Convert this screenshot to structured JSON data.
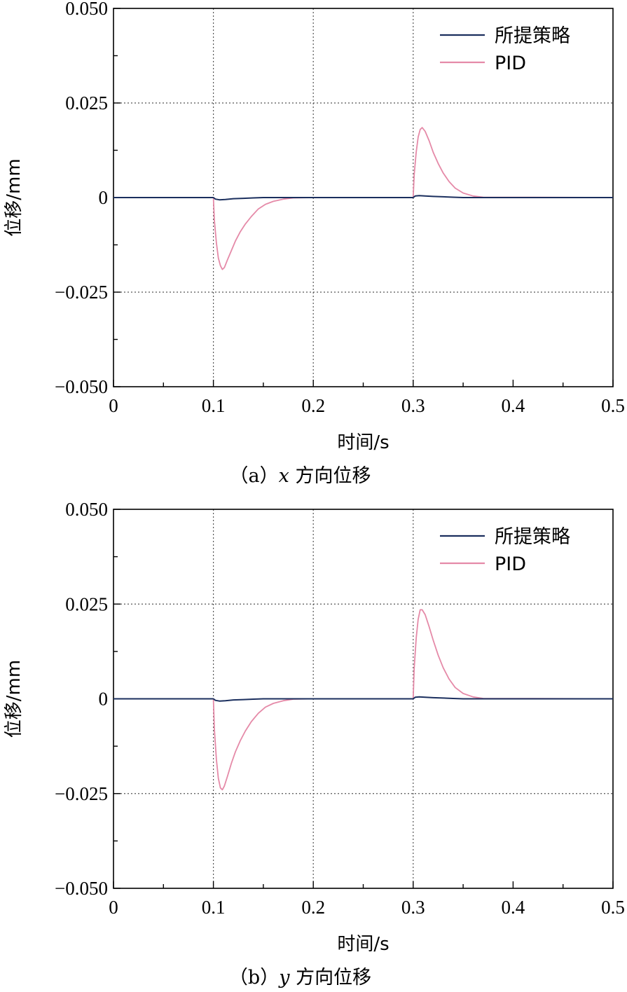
{
  "colors": {
    "proposed": "#1b2f5e",
    "pid": "#e58aa8",
    "grid": "#555555",
    "axis": "#000000"
  },
  "chart_data": [
    {
      "type": "line",
      "caption_prefix": "（a）",
      "caption_var": "x",
      "caption_suffix": " 方向位移",
      "xlabel": "时间/s",
      "ylabel": "位移/mm",
      "xlim": [
        0,
        0.5
      ],
      "ylim": [
        -0.05,
        0.05
      ],
      "x_ticks": [
        "0",
        "0.1",
        "0.2",
        "0.3",
        "0.4",
        "0.5"
      ],
      "y_ticks": [
        "0.050",
        "0.025",
        "0",
        "−0.025",
        "−0.050"
      ],
      "y_tick_values": [
        0.05,
        0.025,
        0,
        -0.025,
        -0.05
      ],
      "grid": "dotted at 0.1, 0.2, 0.3 and ±0.025",
      "legend_position": "top-right",
      "series": [
        {
          "name": "所提策略",
          "color_key": "proposed",
          "x": [
            0,
            0.1,
            0.102,
            0.106,
            0.112,
            0.12,
            0.13,
            0.14,
            0.15,
            0.3,
            0.302,
            0.306,
            0.312,
            0.32,
            0.33,
            0.34,
            0.35,
            0.5
          ],
          "y": [
            0,
            0,
            -0.0004,
            -0.0006,
            -0.0005,
            -0.0003,
            -0.0002,
            -0.0001,
            0,
            0,
            0.0004,
            0.0005,
            0.0004,
            0.0003,
            0.0002,
            0.0001,
            0,
            0
          ]
        },
        {
          "name": "PID",
          "color_key": "pid",
          "x": [
            0,
            0.1,
            0.101,
            0.103,
            0.105,
            0.107,
            0.109,
            0.111,
            0.114,
            0.118,
            0.122,
            0.127,
            0.132,
            0.138,
            0.145,
            0.152,
            0.16,
            0.17,
            0.18,
            0.2,
            0.3,
            0.301,
            0.303,
            0.305,
            0.307,
            0.309,
            0.312,
            0.316,
            0.32,
            0.325,
            0.33,
            0.336,
            0.342,
            0.35,
            0.36,
            0.37,
            0.5
          ],
          "y": [
            0,
            0,
            -0.006,
            -0.012,
            -0.016,
            -0.018,
            -0.019,
            -0.0185,
            -0.0165,
            -0.014,
            -0.0115,
            -0.009,
            -0.007,
            -0.005,
            -0.003,
            -0.0018,
            -0.001,
            -0.0004,
            -0.0001,
            0,
            0,
            0.006,
            0.012,
            0.016,
            0.018,
            0.0185,
            0.0175,
            0.015,
            0.012,
            0.009,
            0.0065,
            0.0042,
            0.0025,
            0.0012,
            0.0004,
            0.0001,
            0
          ]
        }
      ]
    },
    {
      "type": "line",
      "caption_prefix": "（b）",
      "caption_var": "y",
      "caption_suffix": " 方向位移",
      "xlabel": "时间/s",
      "ylabel": "位移/mm",
      "xlim": [
        0,
        0.5
      ],
      "ylim": [
        -0.05,
        0.05
      ],
      "x_ticks": [
        "0",
        "0.1",
        "0.2",
        "0.3",
        "0.4",
        "0.5"
      ],
      "y_ticks": [
        "0.050",
        "0.025",
        "0",
        "−0.025",
        "−0.050"
      ],
      "y_tick_values": [
        0.05,
        0.025,
        0,
        -0.025,
        -0.05
      ],
      "grid": "dotted at 0.1, 0.2, 0.3 and ±0.025",
      "legend_position": "top-right",
      "series": [
        {
          "name": "所提策略",
          "color_key": "proposed",
          "x": [
            0,
            0.1,
            0.102,
            0.106,
            0.112,
            0.12,
            0.13,
            0.14,
            0.15,
            0.3,
            0.302,
            0.306,
            0.312,
            0.32,
            0.33,
            0.34,
            0.35,
            0.5
          ],
          "y": [
            0,
            0,
            -0.0004,
            -0.0006,
            -0.0005,
            -0.0003,
            -0.0002,
            -0.0001,
            0,
            0,
            0.0004,
            0.0005,
            0.0004,
            0.0003,
            0.0002,
            0.0001,
            0,
            0
          ]
        },
        {
          "name": "PID",
          "color_key": "pid",
          "x": [
            0,
            0.1,
            0.101,
            0.103,
            0.105,
            0.107,
            0.109,
            0.111,
            0.114,
            0.118,
            0.122,
            0.127,
            0.132,
            0.138,
            0.145,
            0.152,
            0.16,
            0.17,
            0.18,
            0.2,
            0.3,
            0.301,
            0.303,
            0.305,
            0.307,
            0.309,
            0.312,
            0.316,
            0.32,
            0.325,
            0.33,
            0.336,
            0.342,
            0.35,
            0.36,
            0.37,
            0.5
          ],
          "y": [
            0,
            0,
            -0.008,
            -0.016,
            -0.021,
            -0.0235,
            -0.024,
            -0.023,
            -0.0205,
            -0.017,
            -0.014,
            -0.011,
            -0.0085,
            -0.006,
            -0.0038,
            -0.0022,
            -0.0012,
            -0.0005,
            -0.0001,
            0,
            0,
            0.008,
            0.016,
            0.021,
            0.0235,
            0.0235,
            0.0222,
            0.019,
            0.0155,
            0.0115,
            0.0082,
            0.0052,
            0.003,
            0.0014,
            0.0005,
            0.0001,
            0
          ]
        }
      ]
    }
  ]
}
